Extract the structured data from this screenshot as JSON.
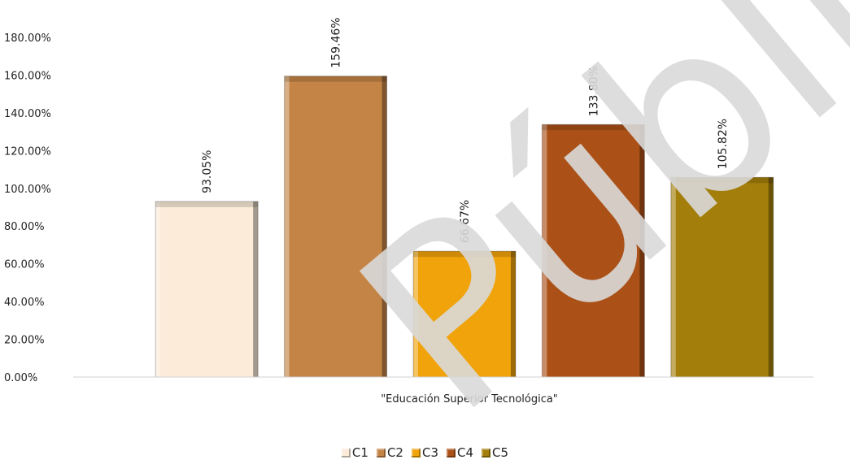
{
  "chart_data": {
    "type": "bar",
    "category": "\"Educación Superior Tecnológica\"",
    "series": [
      {
        "name": "C1",
        "value": 93.05,
        "label": "93.05%",
        "color": "#FBEBD8"
      },
      {
        "name": "C2",
        "value": 159.46,
        "label": "159.46%",
        "color": "#C48446"
      },
      {
        "name": "C3",
        "value": 66.67,
        "label": "66.67%",
        "color": "#F0A30A"
      },
      {
        "name": "C4",
        "value": 133.8,
        "label": "133.80%",
        "color": "#AB5117"
      },
      {
        "name": "C5",
        "value": 105.82,
        "label": "105.82%",
        "color": "#A37E0A"
      }
    ],
    "ylim": [
      0,
      180
    ],
    "yticks": [
      "0.00%",
      "20.00%",
      "40.00%",
      "60.00%",
      "80.00%",
      "100.00%",
      "120.00%",
      "140.00%",
      "160.00%",
      "180.00%"
    ],
    "grid": false,
    "legend_position": "bottom",
    "xlabel": "",
    "ylabel": "",
    "title": ""
  },
  "watermark": {
    "text": "Público",
    "color": "#d9d9d9"
  }
}
